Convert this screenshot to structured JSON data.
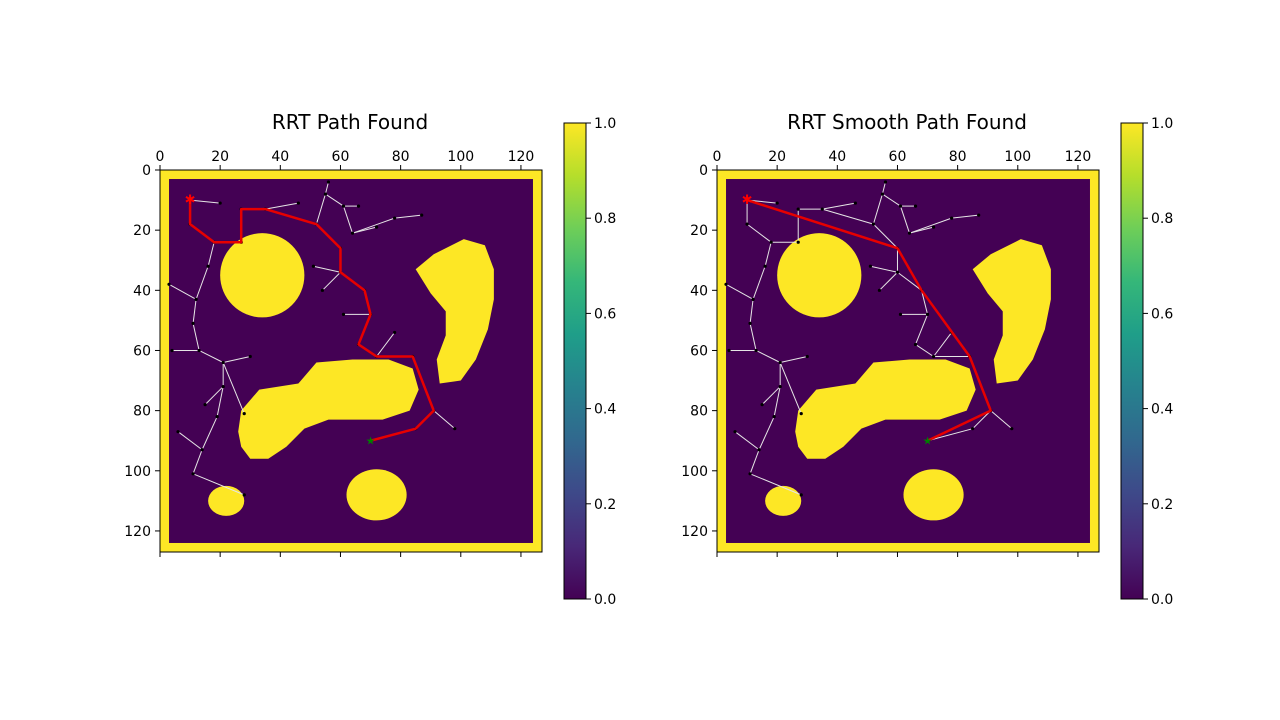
{
  "chart_data": [
    {
      "type": "heatmap",
      "title": "RRT Path Found",
      "xlabel": "",
      "ylabel": "",
      "xlim": [
        0,
        127
      ],
      "ylim": [
        127,
        0
      ],
      "xticks": [
        0,
        20,
        40,
        60,
        80,
        100,
        120
      ],
      "yticks": [
        0,
        20,
        40,
        60,
        80,
        100,
        120
      ],
      "colorbar": {
        "range": [
          0.0,
          1.0
        ],
        "ticks": [
          "0.0",
          "0.2",
          "0.4",
          "0.6",
          "0.8",
          "1.0"
        ],
        "colormap": "viridis"
      },
      "values_description": "occupancy grid: 1.0 = obstacle/border, 0.0 = free space",
      "obstacles": [
        {
          "shape": "ellipse",
          "cx": 34,
          "cy": 35,
          "rx": 14,
          "ry": 14
        },
        {
          "shape": "polygon",
          "points": [
            [
              85,
              33
            ],
            [
              91,
              28
            ],
            [
              101,
              23
            ],
            [
              108,
              25
            ],
            [
              111,
              33
            ],
            [
              111,
              43
            ],
            [
              109,
              53
            ],
            [
              105,
              63
            ],
            [
              100,
              70
            ],
            [
              93,
              71
            ],
            [
              92,
              63
            ],
            [
              95,
              55
            ],
            [
              95,
              47
            ],
            [
              90,
              41
            ]
          ]
        },
        {
          "shape": "polygon",
          "points": [
            [
              27,
              80
            ],
            [
              33,
              73
            ],
            [
              46,
              71
            ],
            [
              52,
              64
            ],
            [
              64,
              63
            ],
            [
              76,
              63
            ],
            [
              84,
              66
            ],
            [
              86,
              73
            ],
            [
              83,
              80
            ],
            [
              74,
              83
            ],
            [
              56,
              83
            ],
            [
              48,
              86
            ],
            [
              42,
              92
            ],
            [
              36,
              96
            ],
            [
              30,
              96
            ],
            [
              27,
              92
            ],
            [
              26,
              87
            ]
          ]
        },
        {
          "shape": "ellipse",
          "cx": 72,
          "cy": 108,
          "rx": 10,
          "ry": 8.5
        },
        {
          "shape": "ellipse",
          "cx": 22,
          "cy": 110,
          "rx": 6,
          "ry": 5
        }
      ],
      "tree_edges": [
        [
          [
            10,
            10
          ],
          [
            10,
            18
          ]
        ],
        [
          [
            10,
            10
          ],
          [
            20,
            11
          ]
        ],
        [
          [
            10,
            18
          ],
          [
            18,
            24
          ]
        ],
        [
          [
            18,
            24
          ],
          [
            27,
            24
          ]
        ],
        [
          [
            27,
            24
          ],
          [
            27,
            13
          ]
        ],
        [
          [
            27,
            13
          ],
          [
            35,
            13
          ]
        ],
        [
          [
            35,
            13
          ],
          [
            46,
            11
          ]
        ],
        [
          [
            35,
            13
          ],
          [
            52,
            18
          ]
        ],
        [
          [
            52,
            18
          ],
          [
            55,
            8
          ]
        ],
        [
          [
            55,
            8
          ],
          [
            56,
            4
          ]
        ],
        [
          [
            55,
            8
          ],
          [
            61,
            12
          ]
        ],
        [
          [
            61,
            12
          ],
          [
            66,
            12
          ]
        ],
        [
          [
            61,
            12
          ],
          [
            64,
            21
          ]
        ],
        [
          [
            64,
            21
          ],
          [
            72,
            19
          ]
        ],
        [
          [
            64,
            21
          ],
          [
            78,
            16
          ]
        ],
        [
          [
            78,
            16
          ],
          [
            87,
            15
          ]
        ],
        [
          [
            52,
            18
          ],
          [
            60,
            26
          ]
        ],
        [
          [
            60,
            26
          ],
          [
            60,
            34
          ]
        ],
        [
          [
            60,
            34
          ],
          [
            51,
            32
          ]
        ],
        [
          [
            60,
            34
          ],
          [
            54,
            40
          ]
        ],
        [
          [
            60,
            34
          ],
          [
            68,
            40
          ]
        ],
        [
          [
            68,
            40
          ],
          [
            70,
            48
          ]
        ],
        [
          [
            70,
            48
          ],
          [
            61,
            48
          ]
        ],
        [
          [
            70,
            48
          ],
          [
            66,
            58
          ]
        ],
        [
          [
            66,
            58
          ],
          [
            72,
            62
          ]
        ],
        [
          [
            72,
            62
          ],
          [
            78,
            54
          ]
        ],
        [
          [
            72,
            62
          ],
          [
            84,
            62
          ]
        ],
        [
          [
            84,
            62
          ],
          [
            91,
            80
          ]
        ],
        [
          [
            91,
            80
          ],
          [
            98,
            86
          ]
        ],
        [
          [
            91,
            80
          ],
          [
            85,
            86
          ]
        ],
        [
          [
            85,
            86
          ],
          [
            70,
            90
          ]
        ],
        [
          [
            18,
            24
          ],
          [
            16,
            32
          ]
        ],
        [
          [
            16,
            32
          ],
          [
            12,
            43
          ]
        ],
        [
          [
            12,
            43
          ],
          [
            11,
            51
          ]
        ],
        [
          [
            11,
            51
          ],
          [
            13,
            60
          ]
        ],
        [
          [
            13,
            60
          ],
          [
            4,
            60
          ]
        ],
        [
          [
            13,
            60
          ],
          [
            21,
            64
          ]
        ],
        [
          [
            21,
            64
          ],
          [
            30,
            62
          ]
        ],
        [
          [
            21,
            64
          ],
          [
            28,
            81
          ]
        ],
        [
          [
            21,
            64
          ],
          [
            21,
            72
          ]
        ],
        [
          [
            21,
            72
          ],
          [
            15,
            78
          ]
        ],
        [
          [
            21,
            72
          ],
          [
            19,
            82
          ]
        ],
        [
          [
            12,
            43
          ],
          [
            3,
            38
          ]
        ],
        [
          [
            19,
            82
          ],
          [
            14,
            93
          ]
        ],
        [
          [
            14,
            93
          ],
          [
            6,
            87
          ]
        ],
        [
          [
            14,
            93
          ],
          [
            11,
            101
          ]
        ],
        [
          [
            11,
            101
          ],
          [
            28,
            108
          ]
        ]
      ],
      "path": [
        [
          10,
          10
        ],
        [
          10,
          18
        ],
        [
          18,
          24
        ],
        [
          27,
          24
        ],
        [
          27,
          13
        ],
        [
          35,
          13
        ],
        [
          52,
          18
        ],
        [
          60,
          26
        ],
        [
          60,
          34
        ],
        [
          68,
          40
        ],
        [
          70,
          48
        ],
        [
          66,
          58
        ],
        [
          72,
          62
        ],
        [
          84,
          62
        ],
        [
          91,
          80
        ],
        [
          85,
          86
        ],
        [
          70,
          90
        ]
      ],
      "start": [
        10,
        10
      ],
      "goal": [
        70,
        90
      ]
    },
    {
      "type": "heatmap",
      "title": "RRT Smooth Path Found",
      "xlabel": "",
      "ylabel": "",
      "xlim": [
        0,
        127
      ],
      "ylim": [
        127,
        0
      ],
      "xticks": [
        0,
        20,
        40,
        60,
        80,
        100,
        120
      ],
      "yticks": [
        0,
        20,
        40,
        60,
        80,
        100,
        120
      ],
      "colorbar": {
        "range": [
          0.0,
          1.0
        ],
        "ticks": [
          "0.0",
          "0.2",
          "0.4",
          "0.6",
          "0.8",
          "1.0"
        ],
        "colormap": "viridis"
      },
      "values_description": "same occupancy grid and tree as left panel",
      "path": [
        [
          10,
          10
        ],
        [
          60,
          26
        ],
        [
          68,
          40
        ],
        [
          84,
          62
        ],
        [
          91,
          80
        ],
        [
          70,
          90
        ]
      ],
      "start": [
        10,
        10
      ],
      "goal": [
        70,
        90
      ]
    }
  ],
  "colors": {
    "free": "#440154",
    "obstacle": "#fde725",
    "tree_edge": "#e6e6e6",
    "tree_node": "#000000",
    "path": "#e60000",
    "start_marker": "#ff0000",
    "goal_marker": "#008000"
  },
  "colorbar_gradient": [
    "#440154",
    "#482878",
    "#3e4989",
    "#31688e",
    "#26828e",
    "#1f9e89",
    "#35b779",
    "#6ece58",
    "#b5de2b",
    "#fde725"
  ]
}
